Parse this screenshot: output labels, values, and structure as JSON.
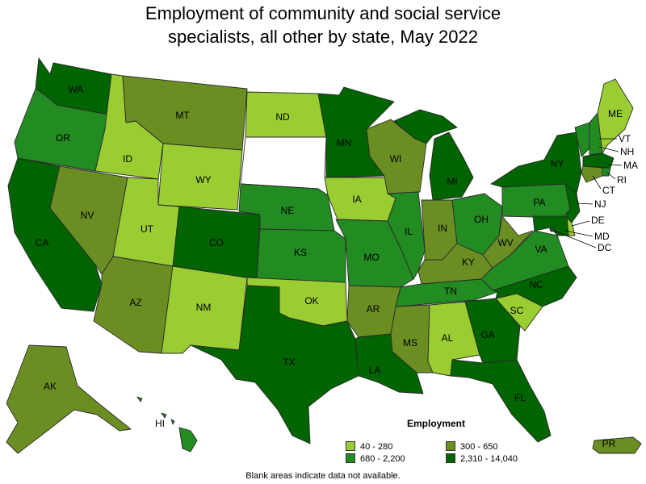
{
  "title": "Employment of community and social service specialists, all other by state, May 2022",
  "title_lines": [
    "Employment of community and social service",
    "specialists, all other by state, May 2022"
  ],
  "legend": {
    "title": "Employment",
    "bins": [
      {
        "label": "40 - 280",
        "color": "#9acd32"
      },
      {
        "label": "300 - 650",
        "color": "#6b8e23"
      },
      {
        "label": "680 - 2,200",
        "color": "#228b22"
      },
      {
        "label": "2,310 - 14,040",
        "color": "#006400"
      }
    ]
  },
  "footnote": "Blank areas indicate data not available.",
  "no_data_color": "#ffffff",
  "states": {
    "WA": 3,
    "OR": 2,
    "CA": 3,
    "NV": 1,
    "ID": 0,
    "MT": 1,
    "WY": 0,
    "UT": 0,
    "AZ": 1,
    "NM": 0,
    "CO": 3,
    "ND": 0,
    "SD": null,
    "NE": 2,
    "KS": 2,
    "OK": 0,
    "TX": 3,
    "MN": 3,
    "IA": 0,
    "MO": 2,
    "AR": 1,
    "LA": 3,
    "WI": 1,
    "IL": 2,
    "MI": 3,
    "IN": 1,
    "OH": 2,
    "KY": 1,
    "TN": 2,
    "MS": 1,
    "AL": 0,
    "GA": 3,
    "FL": 3,
    "SC": 0,
    "NC": 3,
    "VA": 2,
    "WV": 1,
    "PA": 2,
    "NY": 3,
    "VT": 2,
    "NH": 2,
    "ME": 0,
    "MA": 3,
    "RI": 2,
    "CT": 1,
    "NJ": 3,
    "DE": 0,
    "MD": 3,
    "DC": 3,
    "AK": 1,
    "HI": 2,
    "PR": 1
  }
}
